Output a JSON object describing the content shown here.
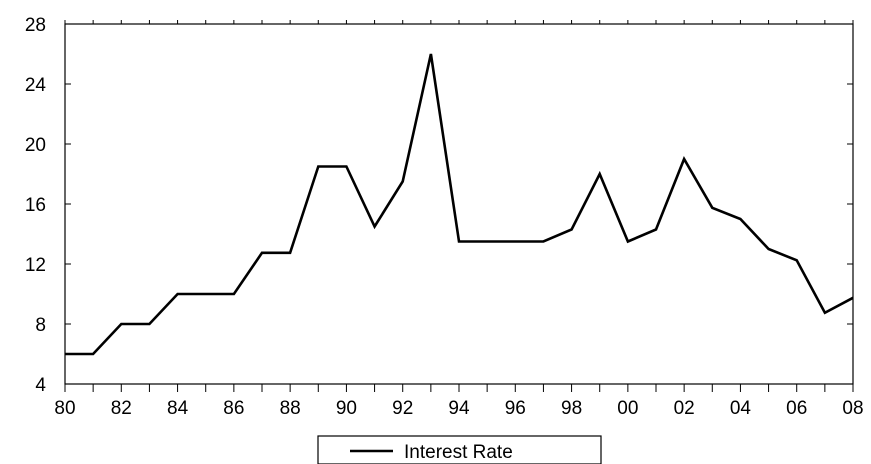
{
  "chart_data": {
    "type": "line",
    "title": "",
    "xlabel": "",
    "ylabel": "",
    "x": [
      "1980",
      "1981",
      "1982",
      "1983",
      "1984",
      "1985",
      "1986",
      "1987",
      "1988",
      "1989",
      "1990",
      "1991",
      "1992",
      "1993",
      "1994",
      "1995",
      "1996",
      "1997",
      "1998",
      "1999",
      "2000",
      "2001",
      "2002",
      "2003",
      "2004",
      "2005",
      "2006",
      "2007",
      "2008"
    ],
    "x_tick_labels": [
      "80",
      "82",
      "84",
      "86",
      "88",
      "90",
      "92",
      "94",
      "96",
      "98",
      "00",
      "02",
      "04",
      "06",
      "08"
    ],
    "y_tick_labels": [
      "4",
      "8",
      "12",
      "16",
      "20",
      "24",
      "28"
    ],
    "ylim": [
      4,
      28
    ],
    "series": [
      {
        "name": "Interest Rate",
        "color": "#000000",
        "values": [
          6.0,
          6.0,
          8.0,
          8.0,
          10.0,
          10.0,
          10.0,
          12.75,
          12.75,
          18.5,
          18.5,
          14.5,
          17.5,
          26.0,
          13.5,
          13.5,
          13.5,
          13.5,
          14.3,
          18.0,
          13.5,
          14.3,
          19.0,
          15.75,
          15.0,
          13.0,
          12.25,
          8.75,
          9.75
        ]
      }
    ],
    "legend": {
      "placement": "bottom-center",
      "label": "Interest Rate"
    },
    "grid": false
  }
}
